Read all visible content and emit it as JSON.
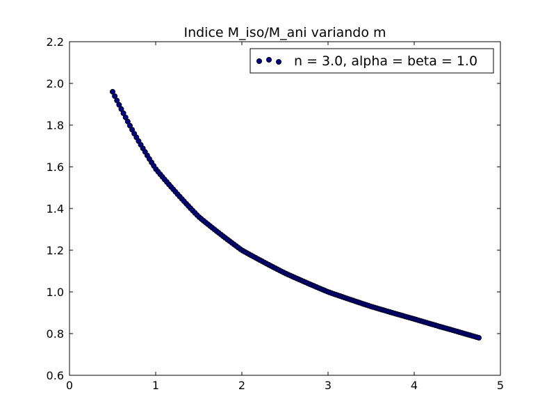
{
  "chart_data": {
    "type": "scatter",
    "title": "Indice M_iso/M_ani variando m",
    "xlabel": "",
    "ylabel": "",
    "xlim": [
      0,
      5
    ],
    "ylim": [
      0.6,
      2.2
    ],
    "xticks": [
      "0",
      "1",
      "2",
      "3",
      "4",
      "5"
    ],
    "yticks": [
      "0.6",
      "0.8",
      "1.0",
      "1.2",
      "1.4",
      "1.6",
      "1.8",
      "2.0",
      "2.2"
    ],
    "grid": false,
    "legend": {
      "placement": "top-right",
      "label": "n = 3.0, alpha = beta = 1.0"
    },
    "series": [
      {
        "name": "n = 3.0, alpha = beta = 1.0",
        "color": "#000080",
        "edge_color": "#000000",
        "x_range": [
          0.5,
          4.75
        ],
        "y_range": [
          1.96,
          0.78
        ],
        "n_points": 170,
        "sample_points": [
          {
            "x": 0.5,
            "y": 1.96
          },
          {
            "x": 0.75,
            "y": 1.76
          },
          {
            "x": 1.0,
            "y": 1.59
          },
          {
            "x": 1.5,
            "y": 1.36
          },
          {
            "x": 2.0,
            "y": 1.2
          },
          {
            "x": 2.5,
            "y": 1.09
          },
          {
            "x": 3.0,
            "y": 1.0
          },
          {
            "x": 3.5,
            "y": 0.93
          },
          {
            "x": 4.0,
            "y": 0.87
          },
          {
            "x": 4.5,
            "y": 0.81
          },
          {
            "x": 4.75,
            "y": 0.78
          }
        ]
      }
    ]
  },
  "colors": {
    "marker_fill": "#000080",
    "marker_edge": "#000000",
    "axes": "#000000",
    "background": "#ffffff"
  }
}
